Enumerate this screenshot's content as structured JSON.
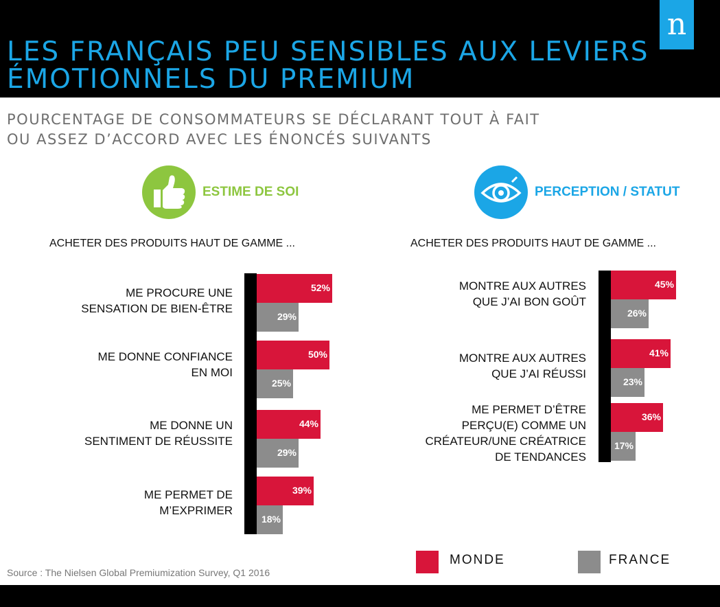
{
  "header": {
    "title_lines": [
      "LES FRANÇAIS PEU SENSIBLES AUX LEVIERS",
      "ÉMOTIONNELS DU PREMIUM"
    ],
    "logo": "n"
  },
  "subtitle_lines": [
    "POURCENTAGE DE CONSOMMATEURS SE DÉCLARANT TOUT À FAIT",
    "OU ASSEZ D’ACCORD AVEC LES ÉNONCÉS SUIVANTS"
  ],
  "colors": {
    "monde": "#d8153a",
    "france": "#8c8c8c",
    "accent": "#1ba6e6",
    "green": "#8dc63f"
  },
  "icons": {
    "left": "thumbs-up-icon",
    "right": "eye-icon"
  },
  "chart_data": [
    {
      "type": "bar",
      "orientation": "horizontal",
      "title": "ESTIME DE SOI",
      "subtitle": "ACHETER DES PRODUITS HAUT DE GAMME ...",
      "categories": [
        [
          "ME PROCURE UNE",
          "SENSATION DE BIEN-ÊTRE"
        ],
        [
          "ME DONNE CONFIANCE",
          "EN MOI"
        ],
        [
          "ME DONNE UN",
          "SENTIMENT DE RÉUSSITE"
        ],
        [
          "ME PERMET DE",
          "M’EXPRIMER"
        ]
      ],
      "series": [
        {
          "name": "MONDE",
          "values": [
            52,
            50,
            44,
            39
          ],
          "labels": [
            "52%",
            "50%",
            "44%",
            "39%"
          ]
        },
        {
          "name": "FRANCE",
          "values": [
            29,
            25,
            29,
            18
          ],
          "labels": [
            "29%",
            "25%",
            "29%",
            "18%"
          ]
        }
      ]
    },
    {
      "type": "bar",
      "orientation": "horizontal",
      "title": "PERCEPTION / STATUT",
      "subtitle": "ACHETER DES PRODUITS HAUT DE GAMME ...",
      "categories": [
        [
          "MONTRE AUX AUTRES",
          "QUE J’AI BON GOÛT"
        ],
        [
          "MONTRE AUX AUTRES",
          "QUE J’AI RÉUSSI"
        ],
        [
          "ME PERMET D’ÊTRE",
          "PERÇU(E) COMME UN",
          "CRÉATEUR/UNE CRÉATRICE",
          "DE TENDANCES"
        ]
      ],
      "series": [
        {
          "name": "MONDE",
          "values": [
            45,
            41,
            36
          ],
          "labels": [
            "45%",
            "41%",
            "36%"
          ]
        },
        {
          "name": "FRANCE",
          "values": [
            26,
            23,
            17
          ],
          "labels": [
            "26%",
            "23%",
            "17%"
          ]
        }
      ]
    }
  ],
  "legend": {
    "monde": "MONDE",
    "france": "FRANCE"
  },
  "source": "Source : The Nielsen Global Premiumization Survey, Q1 2016"
}
